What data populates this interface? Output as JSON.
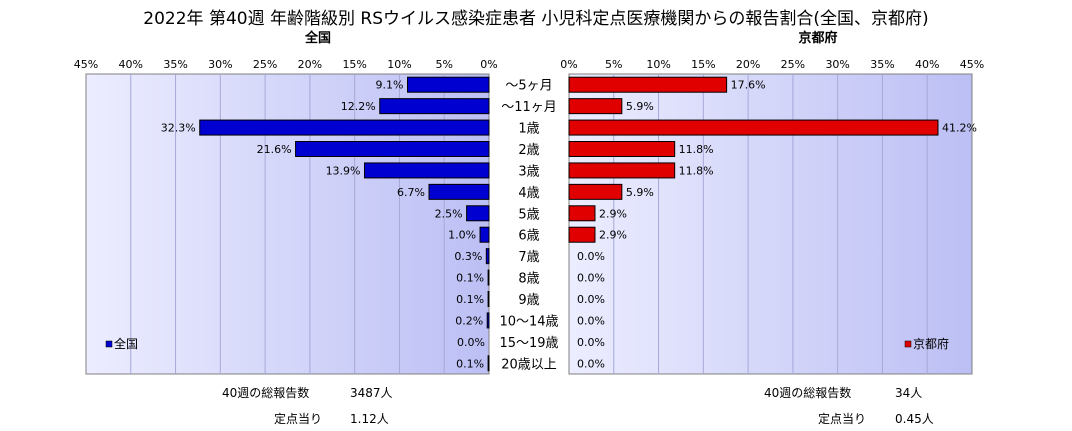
{
  "title": "2022年 第40週 年齢階級別 RSウイルス感染症患者 小児科定点医療機関からの報告割合(全国、京都府)",
  "chart_data": {
    "type": "bar",
    "orientation": "horizontal",
    "layout": "back-to-back",
    "categories": [
      "～5ヶ月",
      "～11ヶ月",
      "1歳",
      "2歳",
      "3歳",
      "4歳",
      "5歳",
      "6歳",
      "7歳",
      "8歳",
      "9歳",
      "10～14歳",
      "15～19歳",
      "20歳以上"
    ],
    "xlim": [
      0,
      45
    ],
    "ticks": [
      "0%",
      "5%",
      "10%",
      "15%",
      "20%",
      "25%",
      "30%",
      "35%",
      "40%",
      "45%"
    ],
    "grid": true,
    "series": [
      {
        "name": "全国",
        "panel_title": "全国",
        "direction": "left",
        "color": "#0000d0",
        "values": [
          9.1,
          12.2,
          32.3,
          21.6,
          13.9,
          6.7,
          2.5,
          1.0,
          0.3,
          0.1,
          0.1,
          0.2,
          0.0,
          0.1
        ],
        "labels": [
          "9.1%",
          "12.2%",
          "32.3%",
          "21.6%",
          "13.9%",
          "6.7%",
          "2.5%",
          "1.0%",
          "0.3%",
          "0.1%",
          "0.1%",
          "0.2%",
          "0.0%",
          "0.1%"
        ],
        "legend": "全国",
        "legend_position": "bottom-left"
      },
      {
        "name": "京都府",
        "panel_title": "京都府",
        "direction": "right",
        "color": "#e00000",
        "values": [
          17.6,
          5.9,
          41.2,
          11.8,
          11.8,
          5.9,
          2.9,
          2.9,
          0.0,
          0.0,
          0.0,
          0.0,
          0.0,
          0.0
        ],
        "labels": [
          "17.6%",
          "5.9%",
          "41.2%",
          "11.8%",
          "11.8%",
          "5.9%",
          "2.9%",
          "2.9%",
          "0.0%",
          "0.0%",
          "0.0%",
          "0.0%",
          "0.0%",
          "0.0%"
        ],
        "legend": "京都府",
        "legend_position": "bottom-right"
      }
    ]
  },
  "stats": {
    "national": {
      "total_label": "40週の総報告数",
      "total_value": "3487人",
      "per_label": "定点当り",
      "per_value": "1.12人"
    },
    "kyoto": {
      "total_label": "40週の総報告数",
      "total_value": "34人",
      "per_label": "定点当り",
      "per_value": "0.45人"
    }
  }
}
